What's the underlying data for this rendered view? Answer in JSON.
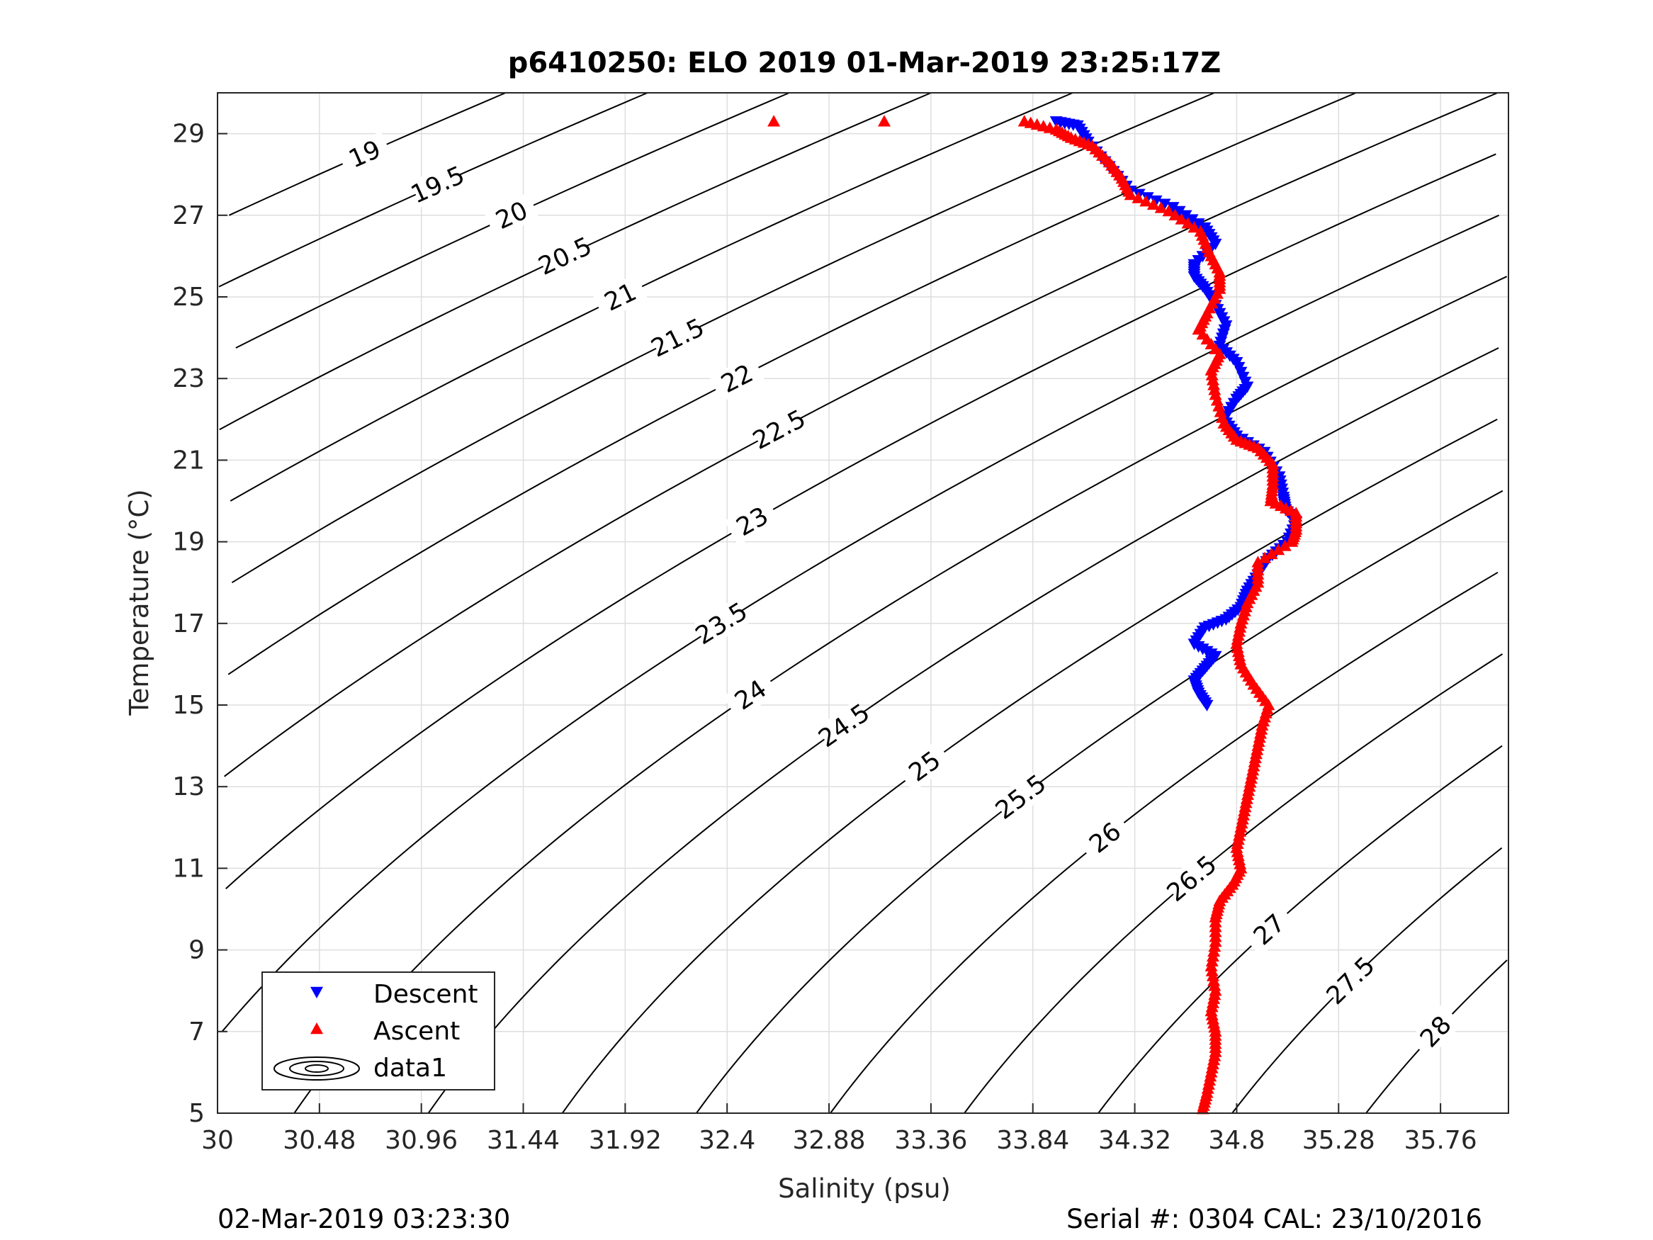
{
  "chart_data": {
    "type": "scatter",
    "title": "p6410250: ELO 2019 01-Mar-2019 23:25:17Z",
    "xlabel": "Salinity (psu)",
    "ylabel": "Temperature (°C)",
    "xlim": [
      30,
      36.08
    ],
    "ylim": [
      5,
      30
    ],
    "xticks": [
      "30",
      "30.48",
      "30.96",
      "31.44",
      "31.92",
      "32.4",
      "32.88",
      "33.36",
      "33.84",
      "34.32",
      "34.8",
      "35.28",
      "35.76"
    ],
    "yticks": [
      "5",
      "7",
      "9",
      "11",
      "13",
      "15",
      "17",
      "19",
      "21",
      "23",
      "25",
      "27",
      "29"
    ],
    "grid": true,
    "legend": {
      "placement": "bottom-left",
      "entries": [
        "Descent",
        "Ascent",
        "data1"
      ]
    },
    "colors": {
      "descent": "#0000ff",
      "ascent": "#ff0000",
      "contour": "#000000",
      "grid": "#dedede"
    },
    "density_contours": [
      "19",
      "19.5",
      "20",
      "20.5",
      "21",
      "21.5",
      "22",
      "22.5",
      "23",
      "23.5",
      "24",
      "24.5",
      "25",
      "25.5",
      "26",
      "26.5",
      "27",
      "27.5",
      "28"
    ],
    "series": [
      {
        "name": "Descent",
        "marker": "triangle-down",
        "profile": [
          [
            33.95,
            29.3
          ],
          [
            34.05,
            29.2
          ],
          [
            34.1,
            28.8
          ],
          [
            34.2,
            28.2
          ],
          [
            34.3,
            27.6
          ],
          [
            34.5,
            27.2
          ],
          [
            34.65,
            26.7
          ],
          [
            34.7,
            26.3
          ],
          [
            34.6,
            25.8
          ],
          [
            34.6,
            25.5
          ],
          [
            34.65,
            25.2
          ],
          [
            34.7,
            24.8
          ],
          [
            34.75,
            24.3
          ],
          [
            34.72,
            23.8
          ],
          [
            34.8,
            23.4
          ],
          [
            34.85,
            22.8
          ],
          [
            34.8,
            22.5
          ],
          [
            34.74,
            22.0
          ],
          [
            34.8,
            21.6
          ],
          [
            34.93,
            21.2
          ],
          [
            35.0,
            20.6
          ],
          [
            35.02,
            20.1
          ],
          [
            35.03,
            19.8
          ],
          [
            35.08,
            19.5
          ],
          [
            35.04,
            19.0
          ],
          [
            34.95,
            18.6
          ],
          [
            34.9,
            18.2
          ],
          [
            34.85,
            17.8
          ],
          [
            34.82,
            17.4
          ],
          [
            34.75,
            17.1
          ],
          [
            34.65,
            16.9
          ],
          [
            34.6,
            16.5
          ],
          [
            34.7,
            16.2
          ],
          [
            34.65,
            15.9
          ],
          [
            34.6,
            15.6
          ],
          [
            34.62,
            15.3
          ],
          [
            34.66,
            15.0
          ]
        ]
      },
      {
        "name": "Ascent",
        "marker": "triangle-up",
        "profile": [
          [
            32.62,
            29.3
          ],
          [
            33.14,
            29.3
          ],
          [
            33.8,
            29.3
          ],
          [
            33.95,
            29.1
          ],
          [
            34.02,
            28.9
          ],
          [
            34.12,
            28.7
          ],
          [
            34.2,
            28.3
          ],
          [
            34.26,
            27.9
          ],
          [
            34.3,
            27.5
          ],
          [
            34.48,
            27.1
          ],
          [
            34.63,
            26.6
          ],
          [
            34.67,
            26.1
          ],
          [
            34.72,
            25.6
          ],
          [
            34.72,
            25.2
          ],
          [
            34.66,
            24.6
          ],
          [
            34.62,
            24.2
          ],
          [
            34.72,
            23.6
          ],
          [
            34.68,
            23.2
          ],
          [
            34.7,
            22.6
          ],
          [
            34.74,
            21.9
          ],
          [
            34.8,
            21.5
          ],
          [
            34.9,
            21.3
          ],
          [
            34.97,
            20.9
          ],
          [
            34.97,
            20.4
          ],
          [
            34.96,
            20.0
          ],
          [
            35.08,
            19.7
          ],
          [
            35.08,
            19.3
          ],
          [
            35.06,
            19.0
          ],
          [
            34.9,
            18.5
          ],
          [
            34.9,
            18.0
          ],
          [
            34.85,
            17.5
          ],
          [
            34.82,
            17.0
          ],
          [
            34.8,
            16.5
          ],
          [
            34.82,
            16.0
          ],
          [
            34.88,
            15.5
          ],
          [
            34.95,
            15.0
          ],
          [
            34.92,
            14.5
          ],
          [
            34.9,
            14.0
          ],
          [
            34.88,
            13.5
          ],
          [
            34.86,
            13.0
          ],
          [
            34.84,
            12.5
          ],
          [
            34.82,
            12.0
          ],
          [
            34.8,
            11.5
          ],
          [
            34.82,
            11.0
          ],
          [
            34.78,
            10.6
          ],
          [
            34.72,
            10.2
          ],
          [
            34.7,
            9.8
          ],
          [
            34.7,
            9.2
          ],
          [
            34.68,
            8.6
          ],
          [
            34.7,
            8.0
          ],
          [
            34.68,
            7.5
          ],
          [
            34.7,
            7.0
          ],
          [
            34.7,
            6.5
          ],
          [
            34.68,
            6.0
          ],
          [
            34.66,
            5.5
          ],
          [
            34.64,
            5.1
          ]
        ]
      },
      {
        "name": "data1",
        "marker": "contour"
      }
    ]
  },
  "footer": {
    "left": "02-Mar-2019 03:23:30",
    "right": "Serial #: 0304  CAL: 23/10/2016"
  }
}
